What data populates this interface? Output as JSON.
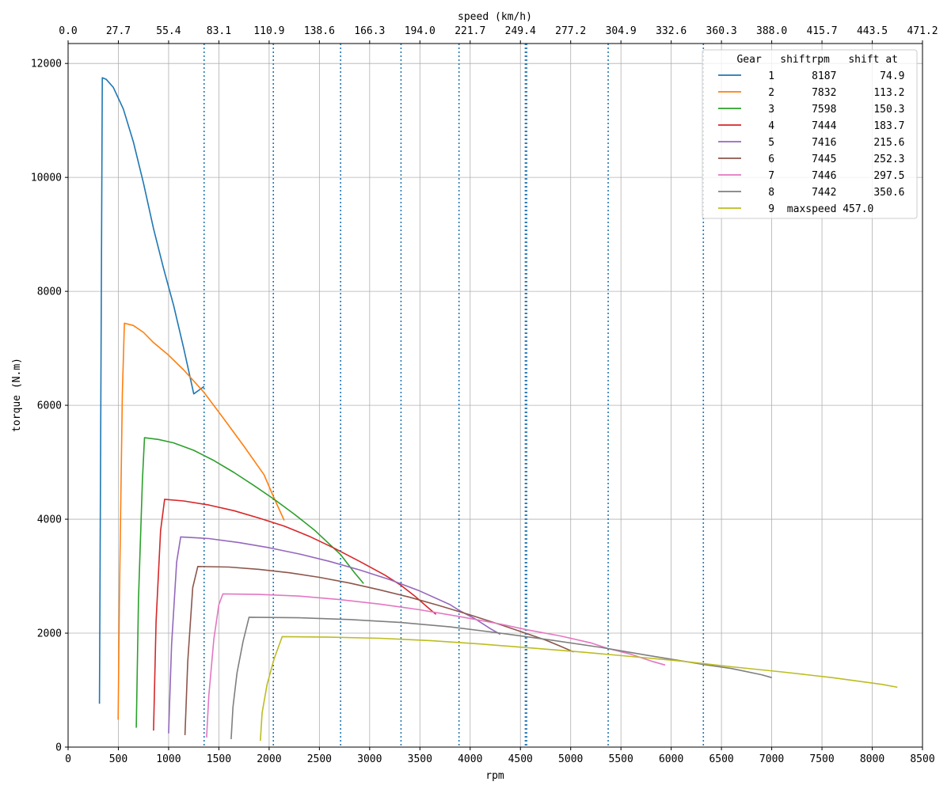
{
  "chart_data": {
    "type": "line",
    "xlabel": "rpm",
    "ylabel": "torque (N.m)",
    "top_xlabel": "speed (km/h)",
    "xlim": [
      0,
      8500
    ],
    "ylim": [
      0,
      12350
    ],
    "x_ticks": [
      0,
      500,
      1000,
      1500,
      2000,
      2500,
      3000,
      3500,
      4000,
      4500,
      5000,
      5500,
      6000,
      6500,
      7000,
      7500,
      8000,
      8500
    ],
    "y_ticks": [
      0,
      2000,
      4000,
      6000,
      8000,
      10000,
      12000
    ],
    "top_ticks": [
      "0.0",
      "27.7",
      "55.4",
      "83.1",
      "110.9",
      "138.6",
      "166.3",
      "194.0",
      "221.7",
      "249.4",
      "277.2",
      "304.9",
      "332.6",
      "360.3",
      "388.0",
      "415.7",
      "443.5",
      "471.2"
    ],
    "grid": true,
    "legend_position": "top-right",
    "legend_header": "   Gear   shiftrpm   shift at",
    "shift_lines_rpm": [
      1353,
      2042,
      2711,
      3312,
      3889,
      4549,
      4562,
      5373,
      6320
    ],
    "shift_line_color": "#1f77b4",
    "series": [
      {
        "name": "1",
        "legend": "    1      8187       74.9",
        "color": "#1f77b4",
        "points": [
          [
            312,
            760
          ],
          [
            340,
            11750
          ],
          [
            380,
            11720
          ],
          [
            450,
            11580
          ],
          [
            550,
            11200
          ],
          [
            650,
            10620
          ],
          [
            750,
            9900
          ],
          [
            850,
            9100
          ],
          [
            950,
            8400
          ],
          [
            1050,
            7750
          ],
          [
            1150,
            7000
          ],
          [
            1250,
            6200
          ],
          [
            1353,
            6330
          ]
        ]
      },
      {
        "name": "2",
        "legend": "    2      7832      113.2",
        "color": "#ff7f0e",
        "points": [
          [
            498,
            480
          ],
          [
            510,
            2500
          ],
          [
            540,
            6200
          ],
          [
            560,
            7440
          ],
          [
            650,
            7400
          ],
          [
            750,
            7280
          ],
          [
            850,
            7100
          ],
          [
            1000,
            6880
          ],
          [
            1150,
            6620
          ],
          [
            1350,
            6230
          ],
          [
            1550,
            5760
          ],
          [
            1750,
            5280
          ],
          [
            1950,
            4780
          ],
          [
            2042,
            4400
          ],
          [
            2150,
            3980
          ]
        ]
      },
      {
        "name": "3",
        "legend": "    3      7598      150.3",
        "color": "#2ca02c",
        "points": [
          [
            678,
            340
          ],
          [
            700,
            2600
          ],
          [
            740,
            4700
          ],
          [
            760,
            5430
          ],
          [
            900,
            5400
          ],
          [
            1050,
            5340
          ],
          [
            1250,
            5210
          ],
          [
            1450,
            5030
          ],
          [
            1650,
            4820
          ],
          [
            1850,
            4590
          ],
          [
            2050,
            4350
          ],
          [
            2250,
            4090
          ],
          [
            2450,
            3810
          ],
          [
            2711,
            3380
          ],
          [
            2850,
            3060
          ],
          [
            2940,
            2870
          ]
        ]
      },
      {
        "name": "4",
        "legend": "    4      7444      183.7",
        "color": "#d62728",
        "points": [
          [
            850,
            290
          ],
          [
            875,
            2200
          ],
          [
            920,
            3800
          ],
          [
            960,
            4350
          ],
          [
            1150,
            4320
          ],
          [
            1400,
            4250
          ],
          [
            1650,
            4150
          ],
          [
            1900,
            4020
          ],
          [
            2150,
            3880
          ],
          [
            2400,
            3700
          ],
          [
            2650,
            3490
          ],
          [
            2900,
            3260
          ],
          [
            3150,
            3020
          ],
          [
            3312,
            2840
          ],
          [
            3450,
            2650
          ],
          [
            3560,
            2480
          ],
          [
            3660,
            2330
          ]
        ]
      },
      {
        "name": "5",
        "legend": "    5      7416      215.6",
        "color": "#9467bd",
        "points": [
          [
            1000,
            240
          ],
          [
            1030,
            1800
          ],
          [
            1080,
            3250
          ],
          [
            1120,
            3690
          ],
          [
            1400,
            3660
          ],
          [
            1700,
            3590
          ],
          [
            2000,
            3500
          ],
          [
            2300,
            3390
          ],
          [
            2600,
            3260
          ],
          [
            2900,
            3110
          ],
          [
            3200,
            2940
          ],
          [
            3500,
            2740
          ],
          [
            3800,
            2500
          ],
          [
            3889,
            2400
          ],
          [
            4050,
            2250
          ],
          [
            4200,
            2080
          ],
          [
            4300,
            1980
          ]
        ]
      },
      {
        "name": "6",
        "legend": "    6      7445      252.3",
        "color": "#8c564b",
        "points": [
          [
            1163,
            210
          ],
          [
            1190,
            1500
          ],
          [
            1240,
            2800
          ],
          [
            1290,
            3170
          ],
          [
            1600,
            3160
          ],
          [
            1900,
            3120
          ],
          [
            2200,
            3060
          ],
          [
            2500,
            2980
          ],
          [
            2800,
            2880
          ],
          [
            3100,
            2760
          ],
          [
            3400,
            2630
          ],
          [
            3700,
            2480
          ],
          [
            4000,
            2320
          ],
          [
            4300,
            2150
          ],
          [
            4549,
            2000
          ],
          [
            4750,
            1880
          ],
          [
            4900,
            1770
          ],
          [
            5030,
            1670
          ]
        ]
      },
      {
        "name": "7",
        "legend": "    7      7446      297.5",
        "color": "#e377c2",
        "points": [
          [
            1378,
            170
          ],
          [
            1400,
            900
          ],
          [
            1450,
            1900
          ],
          [
            1500,
            2500
          ],
          [
            1540,
            2690
          ],
          [
            1900,
            2680
          ],
          [
            2300,
            2650
          ],
          [
            2700,
            2590
          ],
          [
            3100,
            2510
          ],
          [
            3500,
            2410
          ],
          [
            3900,
            2290
          ],
          [
            4300,
            2160
          ],
          [
            4562,
            2060
          ],
          [
            4900,
            1950
          ],
          [
            5200,
            1830
          ],
          [
            5373,
            1730
          ],
          [
            5600,
            1630
          ],
          [
            5800,
            1510
          ],
          [
            5940,
            1440
          ]
        ]
      },
      {
        "name": "8",
        "legend": "    8      7442      350.6",
        "color": "#7f7f7f",
        "points": [
          [
            1622,
            140
          ],
          [
            1640,
            700
          ],
          [
            1680,
            1300
          ],
          [
            1740,
            1850
          ],
          [
            1800,
            2280
          ],
          [
            2300,
            2270
          ],
          [
            2800,
            2240
          ],
          [
            3300,
            2190
          ],
          [
            3800,
            2110
          ],
          [
            4300,
            2000
          ],
          [
            4800,
            1880
          ],
          [
            5300,
            1750
          ],
          [
            5800,
            1600
          ],
          [
            6320,
            1450
          ],
          [
            6600,
            1380
          ],
          [
            6900,
            1270
          ],
          [
            7000,
            1220
          ]
        ]
      },
      {
        "name": "9",
        "legend": "    9  maxspeed 457.0",
        "color": "#bcbd22",
        "points": [
          [
            1913,
            110
          ],
          [
            1930,
            600
          ],
          [
            1980,
            1100
          ],
          [
            2050,
            1550
          ],
          [
            2130,
            1940
          ],
          [
            2600,
            1930
          ],
          [
            3100,
            1910
          ],
          [
            3600,
            1870
          ],
          [
            4100,
            1810
          ],
          [
            4600,
            1740
          ],
          [
            5100,
            1670
          ],
          [
            5600,
            1590
          ],
          [
            6100,
            1510
          ],
          [
            6600,
            1410
          ],
          [
            7100,
            1320
          ],
          [
            7600,
            1220
          ],
          [
            8100,
            1100
          ],
          [
            8250,
            1050
          ]
        ]
      }
    ]
  }
}
